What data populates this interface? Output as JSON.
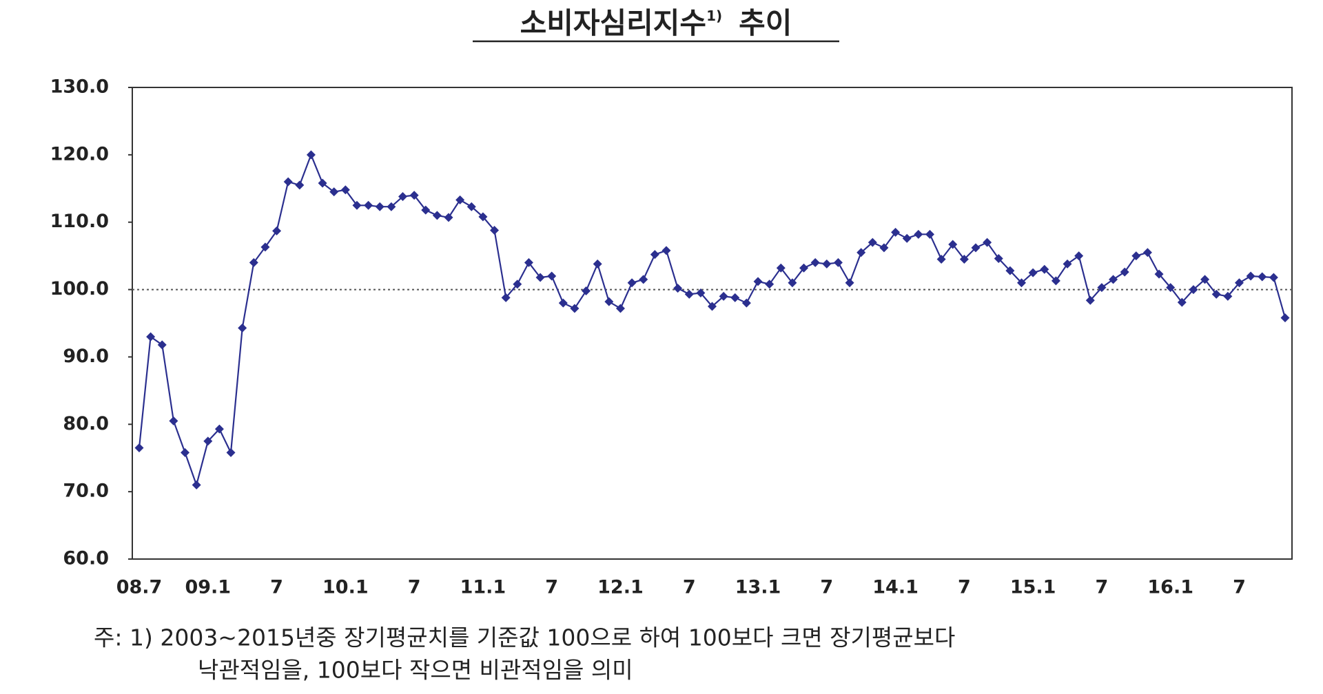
{
  "chart_data": {
    "type": "line",
    "title": "소비자심리지수",
    "title_note_mark": "1)",
    "title_suffix": "추이",
    "categories": [
      "08.7",
      null,
      null,
      null,
      null,
      null,
      "09.1",
      null,
      null,
      null,
      null,
      null,
      "7",
      null,
      null,
      null,
      null,
      null,
      "10.1",
      null,
      null,
      null,
      null,
      null,
      "7",
      null,
      null,
      null,
      null,
      null,
      "11.1",
      null,
      null,
      null,
      null,
      null,
      "7",
      null,
      null,
      null,
      null,
      null,
      "12.1",
      null,
      null,
      null,
      null,
      null,
      "7",
      null,
      null,
      null,
      null,
      null,
      "13.1",
      null,
      null,
      null,
      null,
      null,
      "7",
      null,
      null,
      null,
      null,
      null,
      "14.1",
      null,
      null,
      null,
      null,
      null,
      "7",
      null,
      null,
      null,
      null,
      null,
      "15.1",
      null,
      null,
      null,
      null,
      null,
      "7",
      null,
      null,
      null,
      null,
      null,
      "16.1",
      null,
      null,
      null,
      null,
      null,
      "7",
      null,
      null,
      null,
      null
    ],
    "values": [
      76.5,
      93,
      91.8,
      80.5,
      75.8,
      71,
      77.5,
      79.3,
      75.8,
      94.3,
      104,
      106.3,
      108.7,
      116,
      115.5,
      120,
      115.8,
      114.5,
      114.8,
      112.5,
      112.5,
      112.3,
      112.3,
      113.8,
      114,
      111.8,
      111,
      110.7,
      113.3,
      112.3,
      110.8,
      108.8,
      98.8,
      100.8,
      104,
      101.8,
      102,
      98,
      97.2,
      99.8,
      103.8,
      98.2,
      97.2,
      101,
      101.5,
      105.2,
      105.8,
      100.2,
      99.3,
      99.5,
      97.5,
      99,
      98.8,
      98,
      101.2,
      100.8,
      103.2,
      101,
      103.2,
      104,
      103.8,
      104,
      101,
      105.5,
      107,
      106.2,
      108.5,
      107.6,
      108.2,
      108.2,
      104.5,
      106.7,
      104.5,
      106.2,
      107,
      104.6,
      102.8,
      101,
      102.5,
      103,
      101.3,
      103.8,
      105,
      98.4,
      100.3,
      101.5,
      102.6,
      105,
      105.5,
      102.3,
      100.3,
      98.1,
      100,
      101.5,
      99.3,
      99,
      101,
      102,
      101.9,
      101.8,
      95.8
    ],
    "color": "#2b2f8f",
    "ylim": [
      60,
      130
    ],
    "yticks": [
      {
        "value": 60,
        "label": "60.0"
      },
      {
        "value": 70,
        "label": "70.0"
      },
      {
        "value": 80,
        "label": "80.0"
      },
      {
        "value": 90,
        "label": "90.0"
      },
      {
        "value": 100,
        "label": "100.0"
      },
      {
        "value": 110,
        "label": "110.0"
      },
      {
        "value": 120,
        "label": "120.0"
      },
      {
        "value": 130,
        "label": "130.0"
      }
    ],
    "reference_line": 100,
    "note_lines": [
      "주:  1)  2003~2015년중 장기평균치를 기준값 100으로 하여 100보다 크면 장기평균보다",
      "낙관적임을, 100보다 작으면 비관적임을 의미"
    ]
  }
}
